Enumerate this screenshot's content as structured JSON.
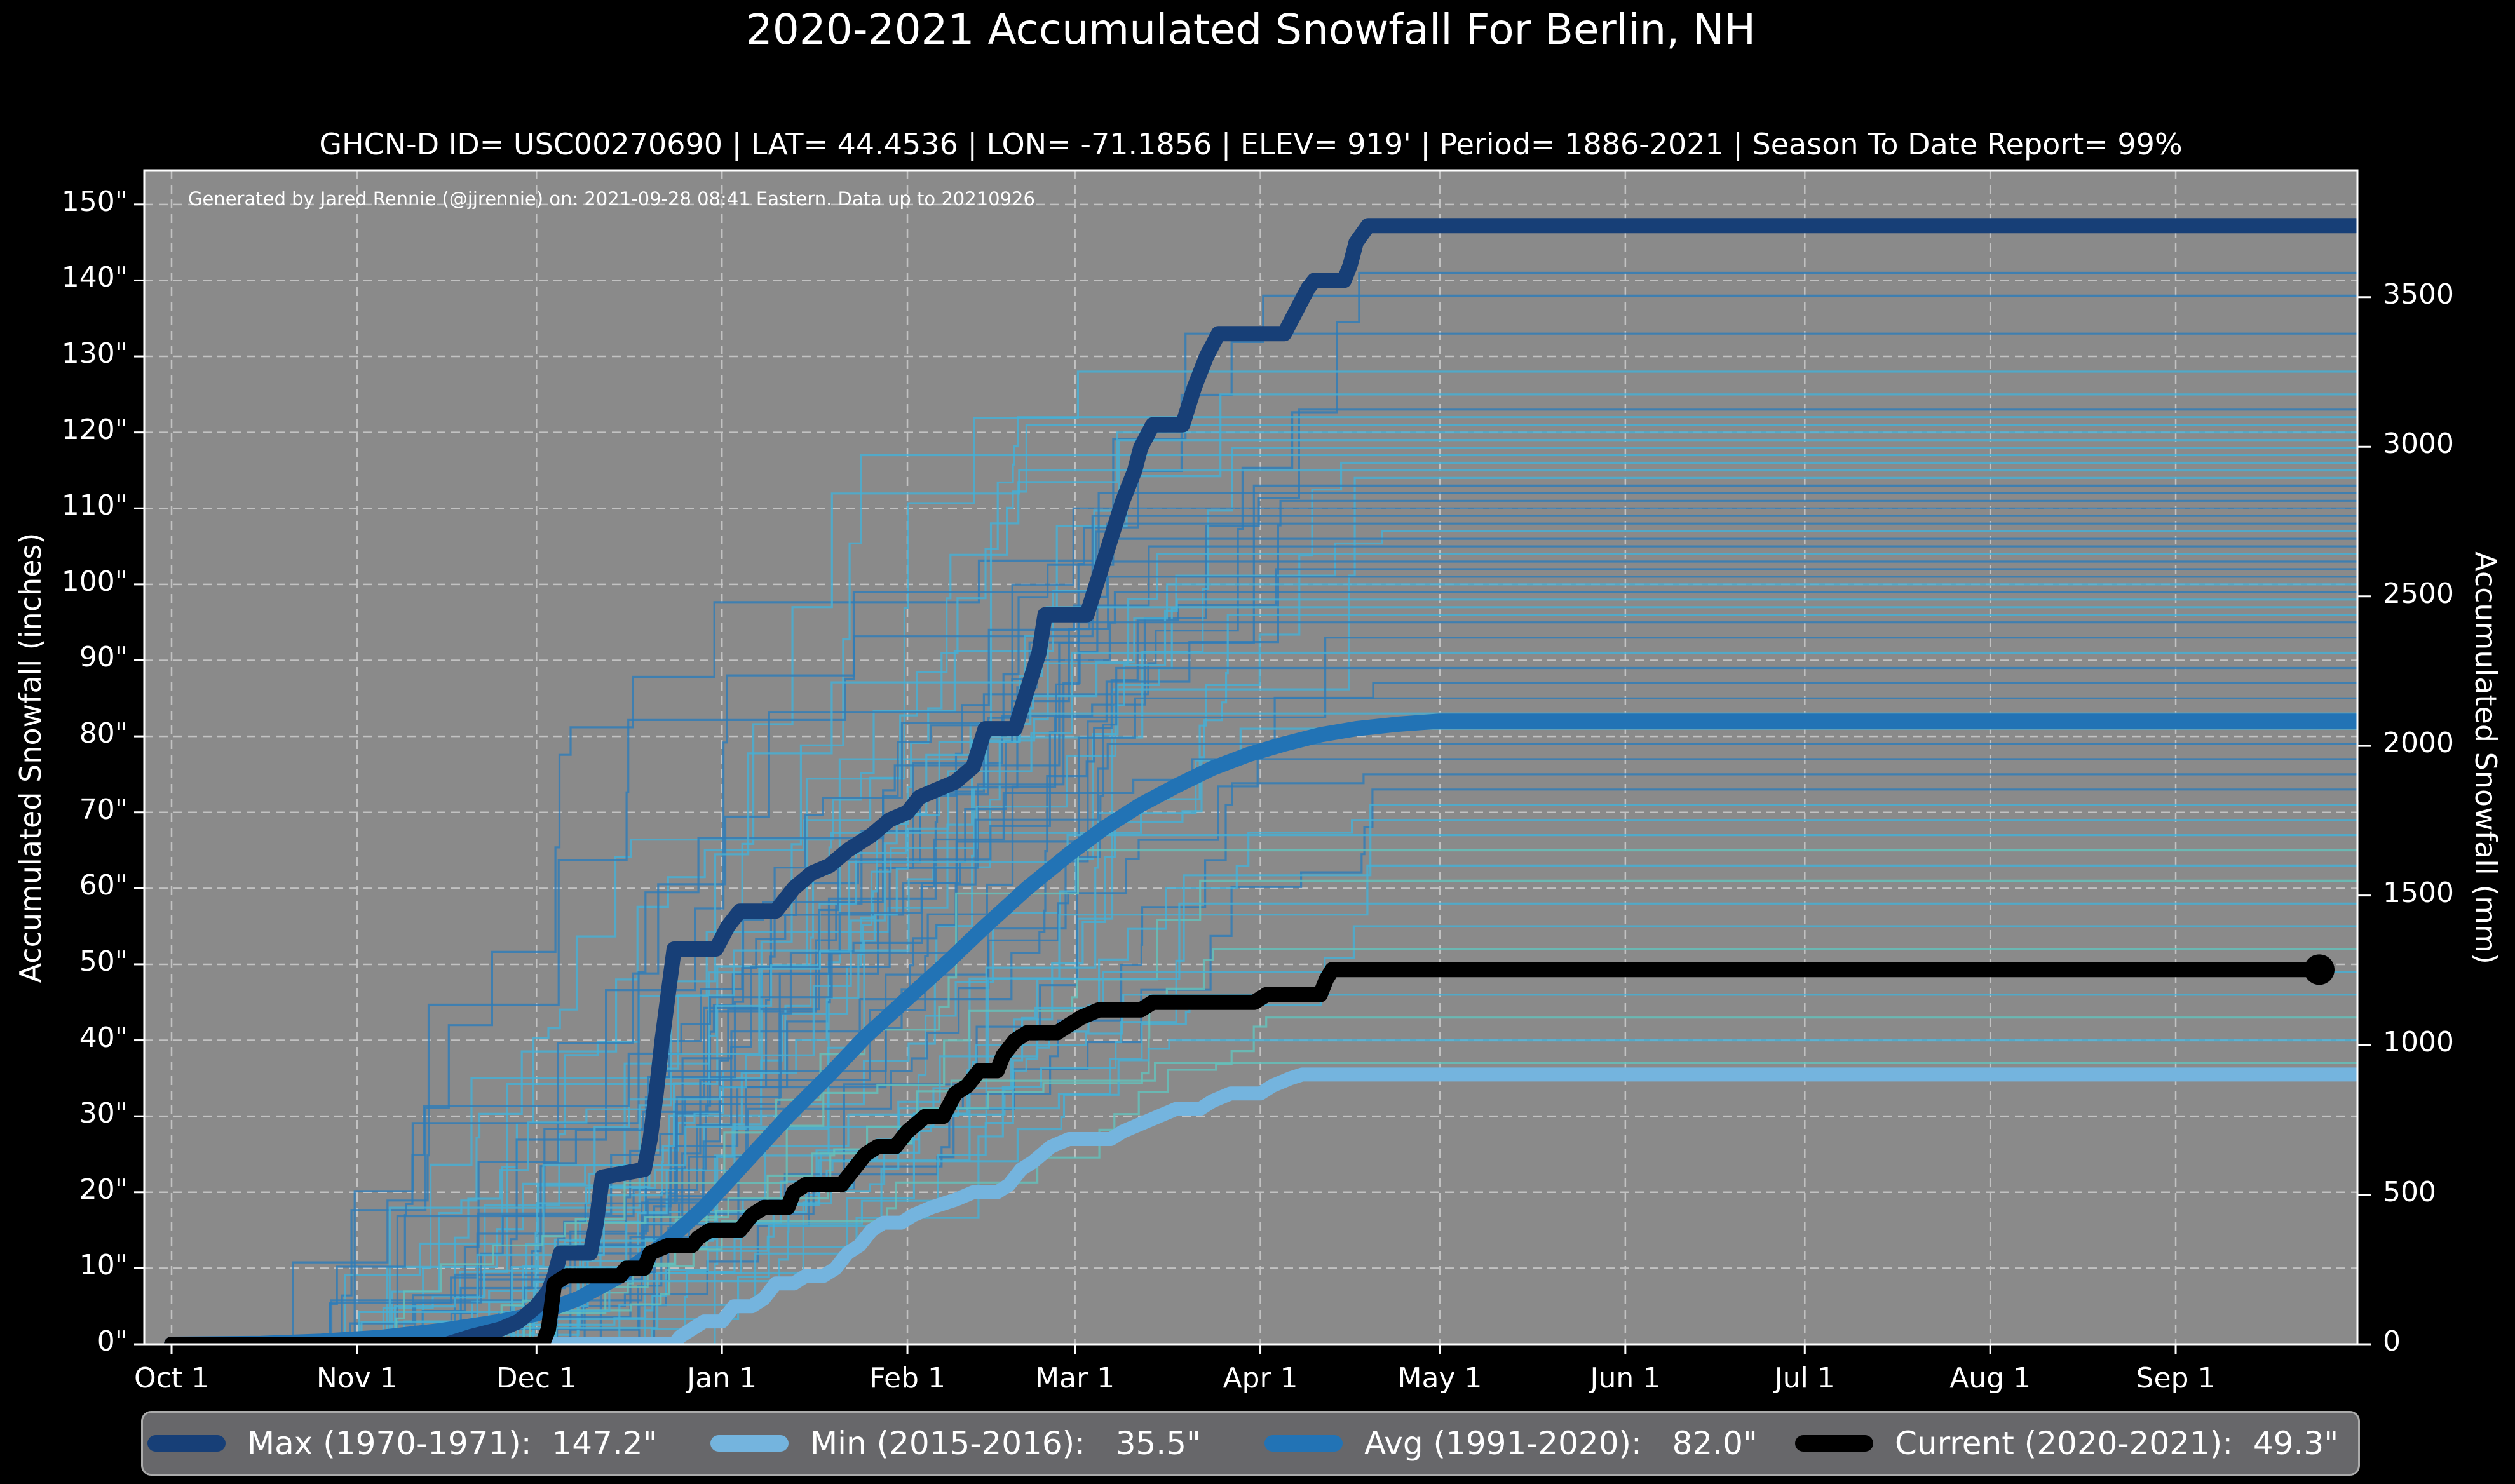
{
  "title": "2020-2021 Accumulated Snowfall For Berlin, NH",
  "subtitle": "GHCN-D ID= USC00270690 | LAT= 44.4536 | LON= -71.1856 | ELEV= 919' | Period= 1886-2021 | Season To Date Report= 99%",
  "annotation": "Generated by Jared Rennie (@jjrennie) on: 2021-09-28 08:41 Eastern. Data up to 20210926",
  "axes": {
    "left_label": "Accumulated Snowfall (inches)",
    "right_label": "Accumulated Snowfall (mm)",
    "left_ticks": [
      {
        "v": 0,
        "label": "0\""
      },
      {
        "v": 10,
        "label": "10\""
      },
      {
        "v": 20,
        "label": "20\""
      },
      {
        "v": 30,
        "label": "30\""
      },
      {
        "v": 40,
        "label": "40\""
      },
      {
        "v": 50,
        "label": "50\""
      },
      {
        "v": 60,
        "label": "60\""
      },
      {
        "v": 70,
        "label": "70\""
      },
      {
        "v": 80,
        "label": "80\""
      },
      {
        "v": 90,
        "label": "90\""
      },
      {
        "v": 100,
        "label": "100\""
      },
      {
        "v": 110,
        "label": "110\""
      },
      {
        "v": 120,
        "label": "120\""
      },
      {
        "v": 130,
        "label": "130\""
      },
      {
        "v": 140,
        "label": "140\""
      },
      {
        "v": 150,
        "label": "150\""
      }
    ],
    "right_ticks": [
      {
        "mm": 0,
        "label": "0"
      },
      {
        "mm": 500,
        "label": "500"
      },
      {
        "mm": 1000,
        "label": "1000"
      },
      {
        "mm": 1500,
        "label": "1500"
      },
      {
        "mm": 2000,
        "label": "2000"
      },
      {
        "mm": 2500,
        "label": "2500"
      },
      {
        "mm": 3000,
        "label": "3000"
      },
      {
        "mm": 3500,
        "label": "3500"
      }
    ],
    "x_ticks": [
      {
        "day": 0,
        "label": "Oct 1"
      },
      {
        "day": 31,
        "label": "Nov 1"
      },
      {
        "day": 61,
        "label": "Dec 1"
      },
      {
        "day": 92,
        "label": "Jan 1"
      },
      {
        "day": 123,
        "label": "Feb 1"
      },
      {
        "day": 151,
        "label": "Mar 1"
      },
      {
        "day": 182,
        "label": "Apr 1"
      },
      {
        "day": 212,
        "label": "May 1"
      },
      {
        "day": 243,
        "label": "Jun 1"
      },
      {
        "day": 273,
        "label": "Jul 1"
      },
      {
        "day": 304,
        "label": "Aug 1"
      },
      {
        "day": 335,
        "label": "Sep 1"
      }
    ],
    "mm_per_inch": 25.4,
    "days_total": 365
  },
  "colors": {
    "page_bg": "#000000",
    "plot_bg": "#8a8a8a",
    "grid": "#c9c9c9",
    "spine": "#ffffff",
    "max": "#173f77",
    "min": "#74b4de",
    "avg": "#2273b5",
    "current": "#000000",
    "bg_steel": "#2e7cb8",
    "bg_cyan": "#45b0d6",
    "bg_teal": "#63c2bc"
  },
  "legend": {
    "items": [
      {
        "label": "Max (1970-1971):  147.2\"",
        "color_key": "max"
      },
      {
        "label": "Min (2015-2016):   35.5\"",
        "color_key": "min"
      },
      {
        "label": "Avg (1991-2020):   82.0\"",
        "color_key": "avg"
      },
      {
        "label": "Current (2020-2021):  49.3\"",
        "color_key": "current"
      }
    ]
  },
  "chart_data": {
    "type": "line",
    "x_unit": "days since Oct 1",
    "y_unit_left": "inches",
    "y_unit_right": "mm",
    "ylim_inches": [
      0,
      154.5
    ],
    "grid": "dashed",
    "legend_position": "bottom",
    "series": [
      {
        "name": "Max (1970-1971)",
        "final_total": 147.2,
        "color_key": "max",
        "width": 24,
        "style": "step",
        "points": [
          [
            0,
            0
          ],
          [
            46,
            0
          ],
          [
            50,
            1
          ],
          [
            55,
            2
          ],
          [
            58,
            3
          ],
          [
            61,
            5
          ],
          [
            63,
            7
          ],
          [
            64,
            9
          ],
          [
            65,
            12
          ],
          [
            70,
            12
          ],
          [
            71,
            16
          ],
          [
            72,
            22
          ],
          [
            79,
            23
          ],
          [
            80,
            27
          ],
          [
            81,
            33
          ],
          [
            82,
            40
          ],
          [
            83,
            46
          ],
          [
            84,
            52
          ],
          [
            91,
            52
          ],
          [
            93,
            55
          ],
          [
            95,
            57
          ],
          [
            101,
            57
          ],
          [
            104,
            60
          ],
          [
            107,
            62
          ],
          [
            110,
            63
          ],
          [
            113,
            65
          ],
          [
            117,
            67
          ],
          [
            120,
            69
          ],
          [
            123,
            70
          ],
          [
            125,
            72
          ],
          [
            128,
            73
          ],
          [
            131,
            74
          ],
          [
            134,
            76
          ],
          [
            136,
            81
          ],
          [
            141,
            81
          ],
          [
            143,
            86
          ],
          [
            145,
            91
          ],
          [
            146,
            96
          ],
          [
            153,
            96
          ],
          [
            155,
            101
          ],
          [
            157,
            106
          ],
          [
            159,
            111
          ],
          [
            161,
            115
          ],
          [
            162,
            118
          ],
          [
            164,
            121
          ],
          [
            169,
            121
          ],
          [
            171,
            126
          ],
          [
            173,
            130
          ],
          [
            175,
            133
          ],
          [
            186,
            133
          ],
          [
            188,
            136
          ],
          [
            190,
            139
          ],
          [
            191,
            140
          ],
          [
            196,
            140
          ],
          [
            197,
            142
          ],
          [
            198,
            145
          ],
          [
            200,
            147.2
          ],
          [
            365,
            147.2
          ]
        ]
      },
      {
        "name": "Min (2015-2016)",
        "final_total": 35.5,
        "color_key": "min",
        "width": 22,
        "style": "step",
        "points": [
          [
            0,
            0
          ],
          [
            84,
            0
          ],
          [
            85,
            1
          ],
          [
            87,
            2
          ],
          [
            89,
            3
          ],
          [
            92,
            3
          ],
          [
            94,
            5
          ],
          [
            97,
            5
          ],
          [
            99,
            6
          ],
          [
            101,
            8
          ],
          [
            104,
            8
          ],
          [
            106,
            9
          ],
          [
            109,
            9
          ],
          [
            111,
            10
          ],
          [
            113,
            12
          ],
          [
            115,
            13
          ],
          [
            117,
            15
          ],
          [
            119,
            16
          ],
          [
            122,
            16
          ],
          [
            124,
            17
          ],
          [
            127,
            18
          ],
          [
            131,
            19
          ],
          [
            134,
            20
          ],
          [
            138,
            20
          ],
          [
            140,
            21
          ],
          [
            142,
            23
          ],
          [
            144,
            24
          ],
          [
            147,
            26
          ],
          [
            150,
            27
          ],
          [
            157,
            27
          ],
          [
            159,
            28
          ],
          [
            162,
            29
          ],
          [
            165,
            30
          ],
          [
            168,
            31
          ],
          [
            172,
            31
          ],
          [
            174,
            32
          ],
          [
            177,
            33
          ],
          [
            182,
            33
          ],
          [
            184,
            34
          ],
          [
            187,
            35
          ],
          [
            189,
            35.5
          ],
          [
            365,
            35.5
          ]
        ]
      },
      {
        "name": "Avg (1991-2020)",
        "final_total": 82.0,
        "color_key": "avg",
        "width": 24,
        "style": "smooth",
        "points": [
          [
            0,
            0
          ],
          [
            15,
            0.1
          ],
          [
            25,
            0.4
          ],
          [
            35,
            0.9
          ],
          [
            45,
            1.8
          ],
          [
            55,
            3
          ],
          [
            61,
            4
          ],
          [
            68,
            6
          ],
          [
            75,
            9
          ],
          [
            82,
            13
          ],
          [
            89,
            18
          ],
          [
            96,
            24
          ],
          [
            103,
            30
          ],
          [
            110,
            35.5
          ],
          [
            116,
            40.5
          ],
          [
            123,
            45.5
          ],
          [
            130,
            50.5
          ],
          [
            136,
            55
          ],
          [
            143,
            60
          ],
          [
            150,
            64.5
          ],
          [
            156,
            68
          ],
          [
            162,
            71
          ],
          [
            168,
            73.5
          ],
          [
            174,
            75.8
          ],
          [
            180,
            77.6
          ],
          [
            186,
            79
          ],
          [
            192,
            80.2
          ],
          [
            198,
            81
          ],
          [
            205,
            81.6
          ],
          [
            212,
            82
          ],
          [
            365,
            82
          ]
        ]
      },
      {
        "name": "Current (2020-2021)",
        "final_total": 49.3,
        "color_key": "current",
        "width": 24,
        "style": "step",
        "end_marker": {
          "day": 359,
          "value": 49.3,
          "radius": 24
        },
        "points": [
          [
            0,
            0
          ],
          [
            62,
            0
          ],
          [
            63,
            2
          ],
          [
            64,
            8
          ],
          [
            66,
            9
          ],
          [
            75,
            9
          ],
          [
            76,
            10
          ],
          [
            79,
            10
          ],
          [
            80,
            12
          ],
          [
            83,
            13
          ],
          [
            87,
            13
          ],
          [
            88,
            14
          ],
          [
            90,
            15
          ],
          [
            95,
            15
          ],
          [
            97,
            17
          ],
          [
            99,
            18
          ],
          [
            103,
            18
          ],
          [
            104,
            20
          ],
          [
            106,
            21
          ],
          [
            112,
            21
          ],
          [
            114,
            23
          ],
          [
            116,
            25
          ],
          [
            118,
            26
          ],
          [
            121,
            26
          ],
          [
            123,
            28
          ],
          [
            126,
            30
          ],
          [
            129,
            30
          ],
          [
            131,
            33
          ],
          [
            133,
            34
          ],
          [
            135,
            36
          ],
          [
            138,
            36
          ],
          [
            139,
            38
          ],
          [
            141,
            40
          ],
          [
            143,
            41
          ],
          [
            148,
            41
          ],
          [
            150,
            42
          ],
          [
            152,
            43
          ],
          [
            155,
            44
          ],
          [
            162,
            44
          ],
          [
            164,
            45
          ],
          [
            181,
            45
          ],
          [
            183,
            46
          ],
          [
            192,
            46
          ],
          [
            193,
            48
          ],
          [
            194,
            49.3
          ],
          [
            359,
            49.3
          ]
        ]
      }
    ],
    "background_seasons": {
      "description": "historical seasons 1886-2021, thin step lines",
      "seed": 1000,
      "stroke_width": 3.2,
      "opacity": 0.82,
      "final_totals": [
        141,
        138,
        133,
        128,
        125,
        123,
        122,
        121,
        120,
        119,
        118,
        117,
        116,
        115,
        114,
        113,
        112,
        111,
        110,
        109,
        108,
        107,
        106,
        105,
        104,
        103,
        102,
        101,
        100,
        99,
        98,
        97,
        96,
        95,
        93,
        91,
        89,
        87,
        85,
        83,
        81,
        79,
        77,
        75,
        73,
        71,
        69,
        67,
        65,
        63,
        61,
        58,
        55,
        52,
        49,
        46,
        43,
        40,
        37
      ]
    }
  }
}
